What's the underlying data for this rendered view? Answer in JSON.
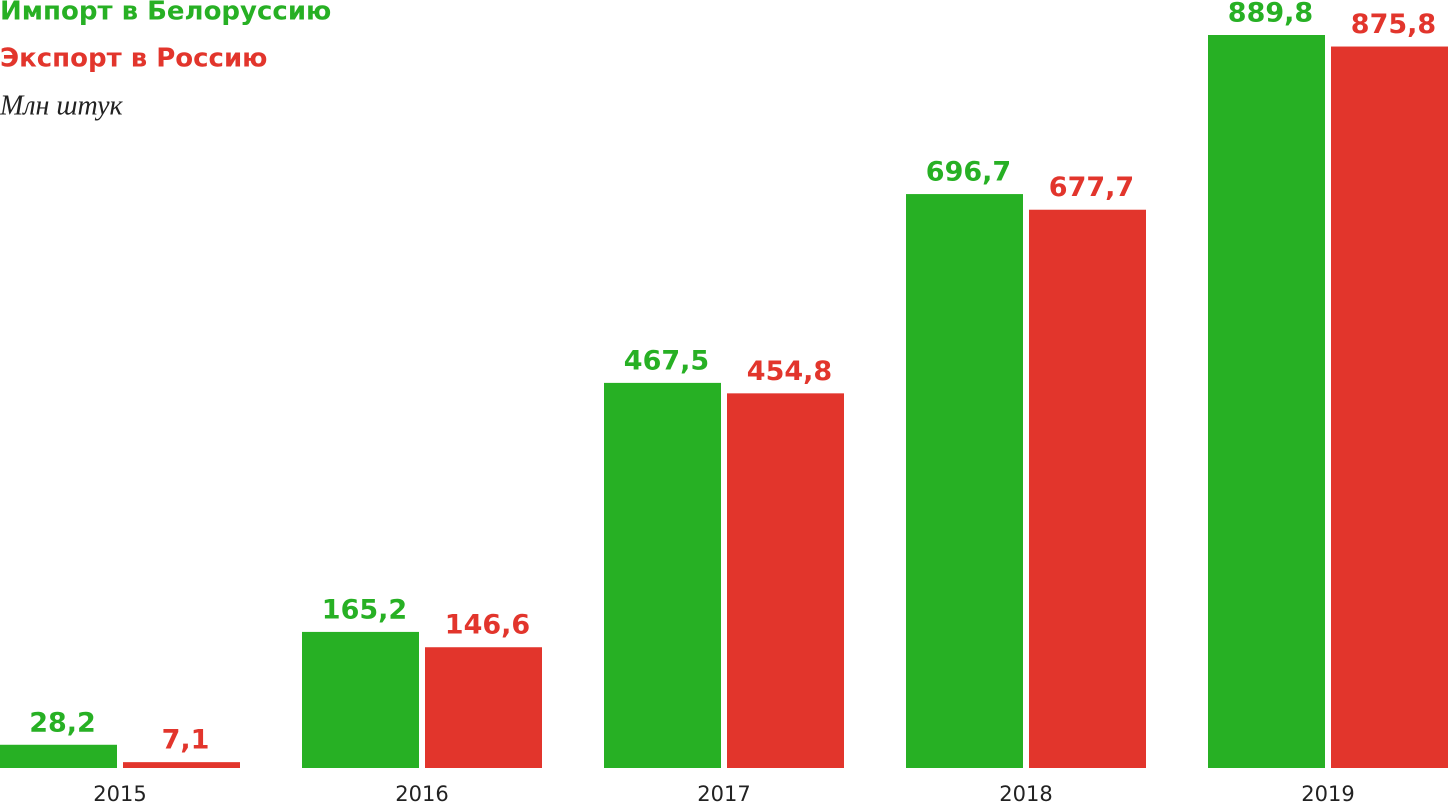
{
  "chart_data": {
    "type": "bar",
    "subtitle": "Млн штук",
    "categories": [
      "2015",
      "2016",
      "2017",
      "2018",
      "2019"
    ],
    "series": [
      {
        "name": "Импорт в Белоруссию",
        "color": "#27b024",
        "values": [
          28.2,
          165.2,
          467.5,
          696.7,
          889.8
        ],
        "value_labels": [
          "28,2",
          "165,2",
          "467,5",
          "696,7",
          "889,8"
        ]
      },
      {
        "name": "Экспорт в Россию",
        "color": "#e2352c",
        "values": [
          7.1,
          146.6,
          454.8,
          677.7,
          875.8
        ],
        "value_labels": [
          "7,1",
          "146,6",
          "454,8",
          "677,7",
          "875,8"
        ]
      }
    ]
  }
}
